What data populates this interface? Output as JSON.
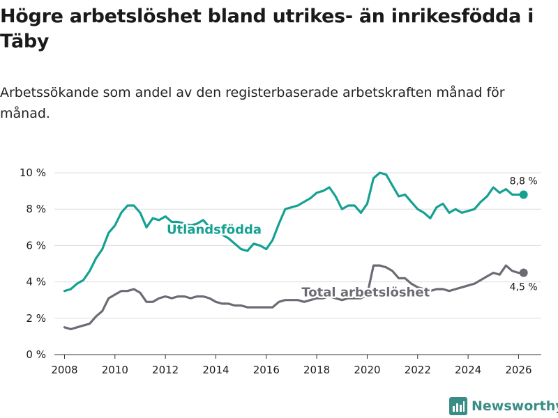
{
  "title": "Högre arbetslöshet bland utrikes- än inrikesfödda i Täby",
  "subtitle": "Arbetssökande som andel av den registerbaserade arbetskraften månad för månad.",
  "brand": "Newsworthy",
  "chart_data": {
    "type": "line",
    "title": "Högre arbetslöshet bland utrikes- än inrikesfödda i Täby",
    "xlabel": "",
    "ylabel": "",
    "xlim": [
      2007.6,
      2026.9
    ],
    "ylim": [
      0,
      10
    ],
    "yticks": [
      0,
      2,
      4,
      6,
      8,
      10
    ],
    "ytick_labels": [
      "0 %",
      "2 %",
      "4 %",
      "6 %",
      "8 %",
      "10 %"
    ],
    "xticks": [
      2008,
      2010,
      2012,
      2014,
      2016,
      2018,
      2020,
      2022,
      2024,
      2026
    ],
    "xtick_labels": [
      "2008",
      "2010",
      "2012",
      "2014",
      "2016",
      "2018",
      "2020",
      "2022",
      "2024",
      "2026"
    ],
    "grid": true,
    "series": [
      {
        "name": "Utlandsfödda",
        "color": "#14a192",
        "end_label": "8,8 %",
        "x": [
          2008.0,
          2008.25,
          2008.5,
          2008.75,
          2009.0,
          2009.25,
          2009.5,
          2009.75,
          2010.0,
          2010.25,
          2010.5,
          2010.75,
          2011.0,
          2011.25,
          2011.5,
          2011.75,
          2012.0,
          2012.25,
          2012.5,
          2012.75,
          2013.0,
          2013.25,
          2013.5,
          2013.75,
          2014.0,
          2014.25,
          2014.5,
          2014.75,
          2015.0,
          2015.25,
          2015.5,
          2015.75,
          2016.0,
          2016.25,
          2016.5,
          2016.75,
          2017.0,
          2017.25,
          2017.5,
          2017.75,
          2018.0,
          2018.25,
          2018.5,
          2018.75,
          2019.0,
          2019.25,
          2019.5,
          2019.75,
          2020.0,
          2020.25,
          2020.5,
          2020.75,
          2021.0,
          2021.25,
          2021.5,
          2021.75,
          2022.0,
          2022.25,
          2022.5,
          2022.75,
          2023.0,
          2023.25,
          2023.5,
          2023.75,
          2024.0,
          2024.25,
          2024.5,
          2024.75,
          2025.0,
          2025.25,
          2025.5,
          2025.75,
          2026.0,
          2026.2
        ],
        "values": [
          3.5,
          3.6,
          3.9,
          4.1,
          4.6,
          5.3,
          5.8,
          6.7,
          7.1,
          7.8,
          8.2,
          8.2,
          7.8,
          7.0,
          7.5,
          7.4,
          7.6,
          7.3,
          7.3,
          7.2,
          7.1,
          7.2,
          7.4,
          7.0,
          6.8,
          6.6,
          6.4,
          6.1,
          5.8,
          5.7,
          6.1,
          6.0,
          5.8,
          6.3,
          7.2,
          8.0,
          8.1,
          8.2,
          8.4,
          8.6,
          8.9,
          9.0,
          9.2,
          8.7,
          8.0,
          8.2,
          8.2,
          7.8,
          8.3,
          9.7,
          10.0,
          9.9,
          9.3,
          8.7,
          8.8,
          8.4,
          8.0,
          7.8,
          7.5,
          8.1,
          8.3,
          7.8,
          8.0,
          7.8,
          7.9,
          8.0,
          8.4,
          8.7,
          9.2,
          8.9,
          9.1,
          8.8,
          8.8,
          8.8
        ]
      },
      {
        "name": "Total arbetslöshet",
        "color": "#6b6b73",
        "end_label": "4,5 %",
        "x": [
          2008.0,
          2008.25,
          2008.5,
          2008.75,
          2009.0,
          2009.25,
          2009.5,
          2009.75,
          2010.0,
          2010.25,
          2010.5,
          2010.75,
          2011.0,
          2011.25,
          2011.5,
          2011.75,
          2012.0,
          2012.25,
          2012.5,
          2012.75,
          2013.0,
          2013.25,
          2013.5,
          2013.75,
          2014.0,
          2014.25,
          2014.5,
          2014.75,
          2015.0,
          2015.25,
          2015.5,
          2015.75,
          2016.0,
          2016.25,
          2016.5,
          2016.75,
          2017.0,
          2017.25,
          2017.5,
          2017.75,
          2018.0,
          2018.25,
          2018.5,
          2018.75,
          2019.0,
          2019.25,
          2019.5,
          2019.75,
          2020.0,
          2020.25,
          2020.5,
          2020.75,
          2021.0,
          2021.25,
          2021.5,
          2021.75,
          2022.0,
          2022.25,
          2022.5,
          2022.75,
          2023.0,
          2023.25,
          2023.5,
          2023.75,
          2024.0,
          2024.25,
          2024.5,
          2024.75,
          2025.0,
          2025.25,
          2025.5,
          2025.75,
          2026.0,
          2026.2
        ],
        "values": [
          1.5,
          1.4,
          1.5,
          1.6,
          1.7,
          2.1,
          2.4,
          3.1,
          3.3,
          3.5,
          3.5,
          3.6,
          3.4,
          2.9,
          2.9,
          3.1,
          3.2,
          3.1,
          3.2,
          3.2,
          3.1,
          3.2,
          3.2,
          3.1,
          2.9,
          2.8,
          2.8,
          2.7,
          2.7,
          2.6,
          2.6,
          2.6,
          2.6,
          2.6,
          2.9,
          3.0,
          3.0,
          3.0,
          2.9,
          3.0,
          3.1,
          3.1,
          3.2,
          3.1,
          3.0,
          3.1,
          3.1,
          3.1,
          3.3,
          4.9,
          4.9,
          4.8,
          4.6,
          4.2,
          4.2,
          3.9,
          3.7,
          3.6,
          3.5,
          3.6,
          3.6,
          3.5,
          3.6,
          3.7,
          3.8,
          3.9,
          4.1,
          4.3,
          4.5,
          4.4,
          4.9,
          4.6,
          4.5,
          4.5
        ]
      }
    ]
  }
}
